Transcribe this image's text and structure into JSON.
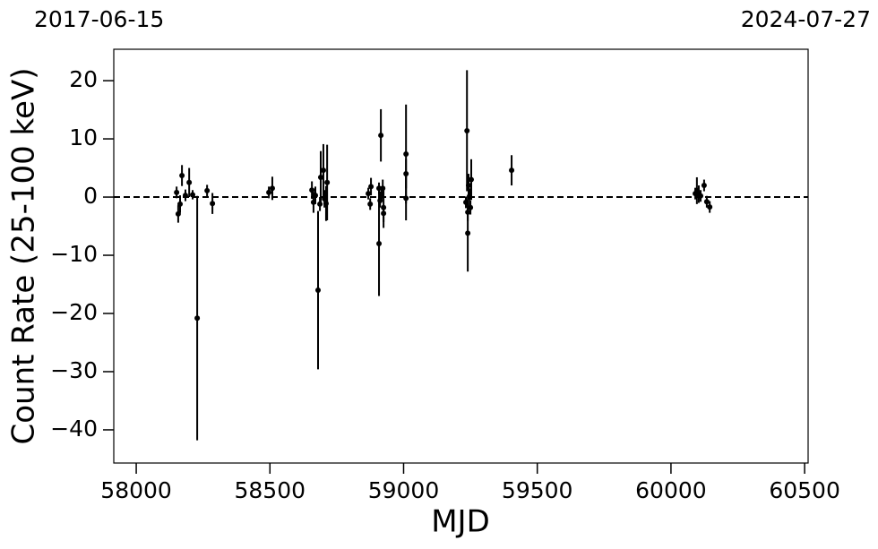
{
  "chart_data": {
    "type": "errorbar",
    "annotations": [
      "2017-06-15",
      "2024-07-27"
    ],
    "x_label": "MJD",
    "y_label": "Count Rate (25-100 keV)",
    "hline": 0,
    "xlim": [
      57916,
      60513
    ],
    "ylim": [
      -45.7,
      25.4
    ],
    "xticks": [
      58000,
      58500,
      59000,
      59500,
      60000,
      60500
    ],
    "yticks": [
      {
        "value": -40,
        "label": "−40"
      },
      {
        "value": -30,
        "label": "−30"
      },
      {
        "value": -20,
        "label": "−20"
      },
      {
        "value": -10,
        "label": "−10"
      },
      0,
      10,
      20
    ],
    "series": [
      {
        "color": "#000000",
        "x": [
          58151,
          58157,
          58164,
          58171,
          58184,
          58198,
          58211,
          58228,
          58265,
          58285,
          58496,
          58509,
          58657,
          58663,
          58670,
          58680,
          58687,
          58690,
          58700,
          58704,
          58710,
          58714,
          58868,
          58875,
          58878,
          58908,
          58908,
          58912,
          58915,
          58918,
          58922,
          58925,
          58925,
          59009,
          59009,
          59009,
          59233,
          59237,
          59240,
          59240,
          59243,
          59247,
          59250,
          59253,
          59404,
          60091,
          60097,
          60104,
          60111,
          60124,
          60134,
          60145
        ],
        "values": [
          0.8,
          -2.9,
          -1.2,
          3.7,
          0.3,
          2.5,
          0.4,
          -20.8,
          1.1,
          -1.1,
          0.8,
          1.5,
          1.2,
          -0.9,
          0.3,
          -16.0,
          -1.2,
          3.4,
          4.6,
          -0.3,
          -1.1,
          2.5,
          0.6,
          -1.2,
          1.8,
          -8.0,
          1.5,
          -0.6,
          10.6,
          0.6,
          1.5,
          -2.8,
          -1.8,
          7.4,
          4.0,
          -0.2,
          -0.9,
          11.4,
          -6.2,
          -2.6,
          2.0,
          0,
          -1.8,
          3.0,
          4.6,
          0.6,
          1.1,
          0.5,
          0.2,
          2.0,
          -0.8,
          -1.7
        ],
        "errors": [
          1,
          1.5,
          1.5,
          1.8,
          1,
          2.5,
          0.8,
          21,
          1,
          1.8,
          1,
          2,
          1.5,
          1.8,
          1.5,
          13.6,
          1.2,
          4.5,
          4.5,
          1.5,
          3,
          6.5,
          1,
          1,
          1.5,
          9,
          1,
          1.2,
          4.5,
          1,
          1.5,
          1.5,
          3.5,
          8.5,
          2.5,
          3.8,
          1,
          10.4,
          6.6,
          1.5,
          2,
          1.5,
          1.2,
          3.5,
          2.6,
          1,
          2.3,
          1.5,
          1,
          1,
          1,
          1
        ]
      }
    ]
  }
}
